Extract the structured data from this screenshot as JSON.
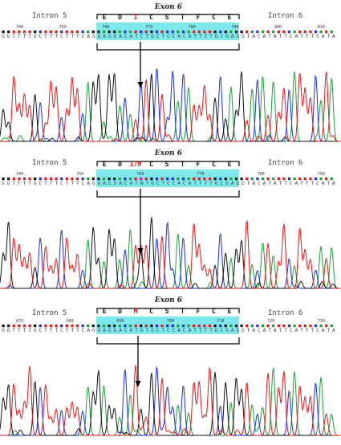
{
  "panels": [
    {
      "exon_label": "Exon 6",
      "intron_left": "Intron 5",
      "intron_right": "Intron 6",
      "amino_acids": [
        "E",
        "D",
        "I",
        "C",
        "S",
        "T",
        "F",
        "C",
        "E"
      ],
      "mutated_index": 2,
      "tick_labels": [
        "740",
        "750",
        "760",
        "770",
        "780",
        "790",
        "800",
        "810"
      ],
      "sequence": "GGTTTTGCTTTCTTTCAGGAGGACATCTGCTCCACATTTTGCGAGGTACATATTCATTTCATA"
    },
    {
      "exon_label": "Exon 6",
      "intron_left": "Intron 5",
      "intron_right": "Intron 6",
      "amino_acids": [
        "E",
        "D",
        "I/M",
        "C",
        "S",
        "T",
        "F",
        "C",
        "E"
      ],
      "mutated_index": 2,
      "tick_labels": [
        "740",
        "750",
        "760",
        "770",
        "780",
        "790"
      ],
      "sequence": "GGTTTTGCTTTCTTTCAGGAGGACATNTGCTCCACATTTTGCGAGGTACATATTCATTTCATA"
    },
    {
      "exon_label": "Exon 6",
      "intron_left": "Intron 5",
      "intron_right": "Intron 6",
      "amino_acids": [
        "E",
        "D",
        "M",
        "C",
        "S",
        "T",
        "F",
        "C",
        "E"
      ],
      "mutated_index": 2,
      "tick_labels": [
        "670",
        "680",
        "690",
        "700",
        "710",
        "720",
        "730"
      ],
      "sequence": "GGTTTTGCTTTCTTTCAGGAGGACATGTGCTCCACATTTTGCGAGGTACATATTCATTTCATA"
    }
  ],
  "colors": {
    "A": "#1e9e3a",
    "C": "#1f2fd6",
    "G": "#111111",
    "T": "#e01a1a",
    "N": "#d4149a",
    "highlight": "#7ee8ea"
  }
}
